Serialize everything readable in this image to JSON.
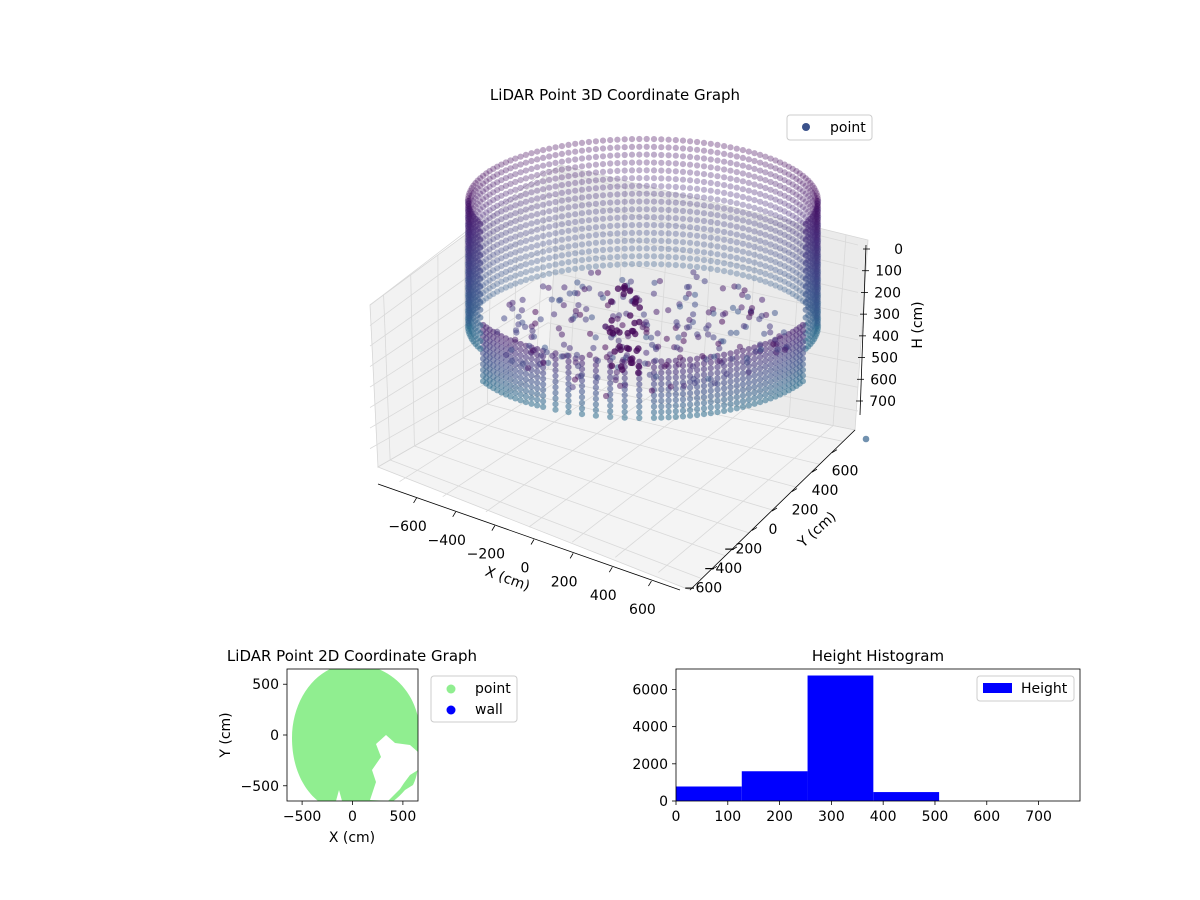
{
  "chart_data": [
    {
      "type": "scatter3d",
      "title": "LiDAR Point 3D Coordinate Graph",
      "xlabel": "X (cm)",
      "ylabel": "Y (cm)",
      "zlabel": "H (cm)",
      "xlim": [
        -700,
        700
      ],
      "ylim": [
        -700,
        700
      ],
      "zlim": [
        0,
        780
      ],
      "z_axis_inverted": true,
      "xticks": [
        -600,
        -400,
        -200,
        0,
        200,
        400,
        600
      ],
      "yticks": [
        -600,
        -400,
        -200,
        0,
        200,
        400,
        600
      ],
      "zticks": [
        0,
        100,
        200,
        300,
        400,
        500,
        600,
        700
      ],
      "legend": [
        {
          "label": "point",
          "color": "#3b528b"
        }
      ],
      "legend_position": "top-right",
      "colormap": "viridis",
      "grid": true,
      "series": [
        {
          "name": "point",
          "description": "Ring-shaped wall of points, radius about 600 cm, height 0–380 cm, with scattered interior points"
        }
      ]
    },
    {
      "type": "scatter",
      "title": "LiDAR Point 2D Coordinate Graph",
      "xlabel": "X (cm)",
      "ylabel": "Y (cm)",
      "xlim": [
        -650,
        650
      ],
      "ylim": [
        -650,
        650
      ],
      "xticks": [
        -500,
        0,
        500
      ],
      "yticks": [
        -500,
        0,
        500
      ],
      "legend": [
        {
          "label": "point",
          "color": "#90ee90"
        },
        {
          "label": "wall",
          "color": "#0000ff"
        }
      ],
      "legend_position": "outside-right",
      "series": [
        {
          "name": "point",
          "color": "#90ee90"
        },
        {
          "name": "wall",
          "color": "#0000ff"
        }
      ]
    },
    {
      "type": "histogram",
      "title": "Height Histogram",
      "xlabel": "",
      "ylabel": "",
      "xlim": [
        0,
        780
      ],
      "ylim": [
        0,
        7100
      ],
      "xticks": [
        0,
        100,
        200,
        300,
        400,
        500,
        600,
        700
      ],
      "yticks": [
        0,
        2000,
        4000,
        6000
      ],
      "bin_edges": [
        0,
        127,
        254,
        381,
        508,
        635,
        762
      ],
      "counts": [
        780,
        1600,
        6750,
        480,
        0,
        0
      ],
      "color": "#0000ff",
      "legend": [
        {
          "label": "Height",
          "color": "#0000ff"
        }
      ],
      "legend_position": "top-right"
    }
  ]
}
